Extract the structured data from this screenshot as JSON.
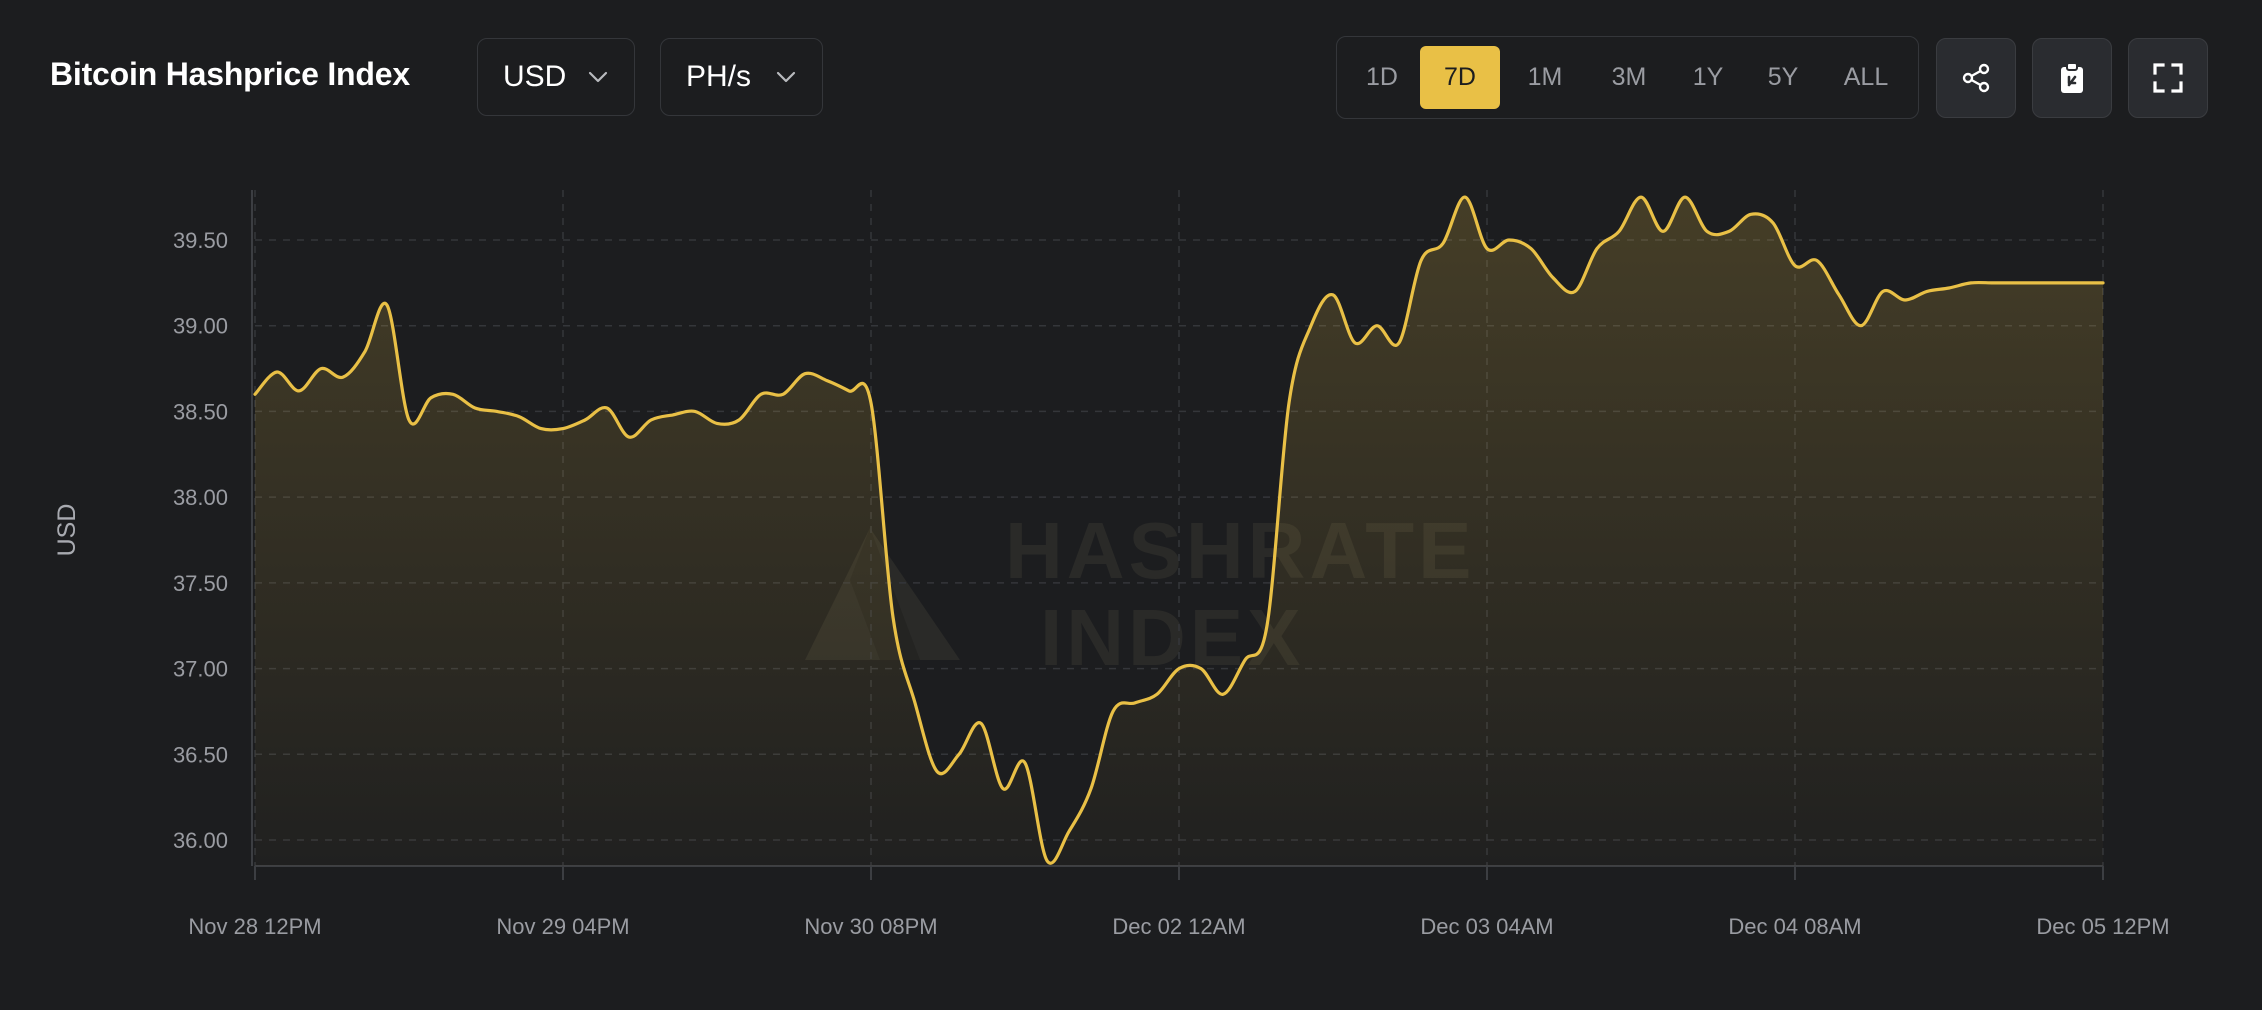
{
  "header": {
    "title": "Bitcoin Hashprice Index",
    "currency_select": "USD",
    "unit_select": "PH/s",
    "ranges": [
      "1D",
      "7D",
      "1M",
      "3M",
      "1Y",
      "5Y",
      "ALL"
    ],
    "active_range": "7D",
    "icons": [
      "share-icon",
      "clipboard-icon",
      "fullscreen-icon"
    ]
  },
  "watermark": {
    "line1": "HASHRATE",
    "line2": "INDEX"
  },
  "colors": {
    "line": "#e9c046",
    "background": "#1c1d1f",
    "active_range": "#e9c046"
  },
  "chart_data": {
    "type": "area",
    "ylabel": "USD",
    "ylim": [
      35.85,
      39.8
    ],
    "xlim": [
      "2024-11-28 12:00",
      "2024-12-05 12:00"
    ],
    "yticks": [
      "36.00",
      "36.50",
      "37.00",
      "37.50",
      "38.00",
      "38.50",
      "39.00",
      "39.50"
    ],
    "xticks": [
      "Nov 28 12PM",
      "Nov 29 04PM",
      "Nov 30 08PM",
      "Dec 02 12AM",
      "Dec 03 04AM",
      "Dec 04 08AM",
      "Dec 05 12PM"
    ],
    "grid": true,
    "series": [
      {
        "x": [
          "2024-11-28 12:00",
          "2024-11-28 14:00",
          "2024-11-28 16:00",
          "2024-11-28 18:00",
          "2024-11-28 20:00",
          "2024-11-28 22:00",
          "2024-11-29 00:00",
          "2024-11-29 02:00",
          "2024-11-29 04:00",
          "2024-11-29 06:00",
          "2024-11-29 08:00",
          "2024-11-29 10:00",
          "2024-11-29 12:00",
          "2024-11-29 14:00",
          "2024-11-29 16:00",
          "2024-11-29 18:00",
          "2024-11-29 20:00",
          "2024-11-29 22:00",
          "2024-11-30 00:00",
          "2024-11-30 02:00",
          "2024-11-30 04:00",
          "2024-11-30 06:00",
          "2024-11-30 08:00",
          "2024-11-30 10:00",
          "2024-11-30 12:00",
          "2024-11-30 14:00",
          "2024-11-30 16:00",
          "2024-11-30 18:00",
          "2024-11-30 20:00",
          "2024-11-30 22:00",
          "2024-12-01 00:00",
          "2024-12-01 02:00",
          "2024-12-01 04:00",
          "2024-12-01 06:00",
          "2024-12-01 08:00",
          "2024-12-01 10:00",
          "2024-12-01 12:00",
          "2024-12-01 14:00",
          "2024-12-01 16:00",
          "2024-12-01 18:00",
          "2024-12-01 20:00",
          "2024-12-01 22:00",
          "2024-12-02 00:00",
          "2024-12-02 02:00",
          "2024-12-02 04:00",
          "2024-12-02 06:00",
          "2024-12-02 08:00",
          "2024-12-02 10:00",
          "2024-12-02 12:00",
          "2024-12-02 14:00",
          "2024-12-02 16:00",
          "2024-12-02 18:00",
          "2024-12-02 20:00",
          "2024-12-02 22:00",
          "2024-12-03 00:00",
          "2024-12-03 02:00",
          "2024-12-03 04:00",
          "2024-12-03 06:00",
          "2024-12-03 08:00",
          "2024-12-03 10:00",
          "2024-12-03 12:00",
          "2024-12-03 14:00",
          "2024-12-03 16:00",
          "2024-12-03 18:00",
          "2024-12-03 20:00",
          "2024-12-03 22:00",
          "2024-12-04 00:00",
          "2024-12-04 02:00",
          "2024-12-04 04:00",
          "2024-12-04 06:00",
          "2024-12-04 08:00",
          "2024-12-04 10:00",
          "2024-12-04 12:00",
          "2024-12-04 14:00",
          "2024-12-04 16:00",
          "2024-12-04 18:00",
          "2024-12-04 20:00",
          "2024-12-04 22:00",
          "2024-12-05 00:00",
          "2024-12-05 02:00",
          "2024-12-05 04:00",
          "2024-12-05 06:00",
          "2024-12-05 08:00",
          "2024-12-05 10:00",
          "2024-12-05 12:00"
        ],
        "values": [
          38.6,
          38.73,
          38.62,
          38.75,
          38.7,
          38.85,
          39.12,
          38.45,
          38.58,
          38.6,
          38.52,
          38.5,
          38.47,
          38.4,
          38.4,
          38.45,
          38.52,
          38.35,
          38.45,
          38.48,
          38.5,
          38.43,
          38.45,
          38.6,
          38.6,
          38.72,
          38.68,
          38.62,
          38.55,
          37.3,
          36.8,
          36.4,
          36.5,
          36.68,
          36.3,
          36.45,
          35.88,
          36.05,
          36.3,
          36.75,
          36.8,
          36.85,
          37.0,
          37.0,
          36.85,
          37.05,
          37.25,
          38.55,
          39.0,
          39.18,
          38.9,
          39.0,
          38.9,
          39.38,
          39.48,
          39.75,
          39.45,
          39.5,
          39.45,
          39.28,
          39.2,
          39.45,
          39.55,
          39.75,
          39.55,
          39.75,
          39.55,
          39.55,
          39.65,
          39.6,
          39.35,
          39.38,
          39.18,
          39.0,
          39.2,
          39.15,
          39.2,
          39.22,
          39.25,
          39.25,
          39.25,
          39.25,
          39.25,
          39.25,
          39.25
        ]
      }
    ]
  }
}
